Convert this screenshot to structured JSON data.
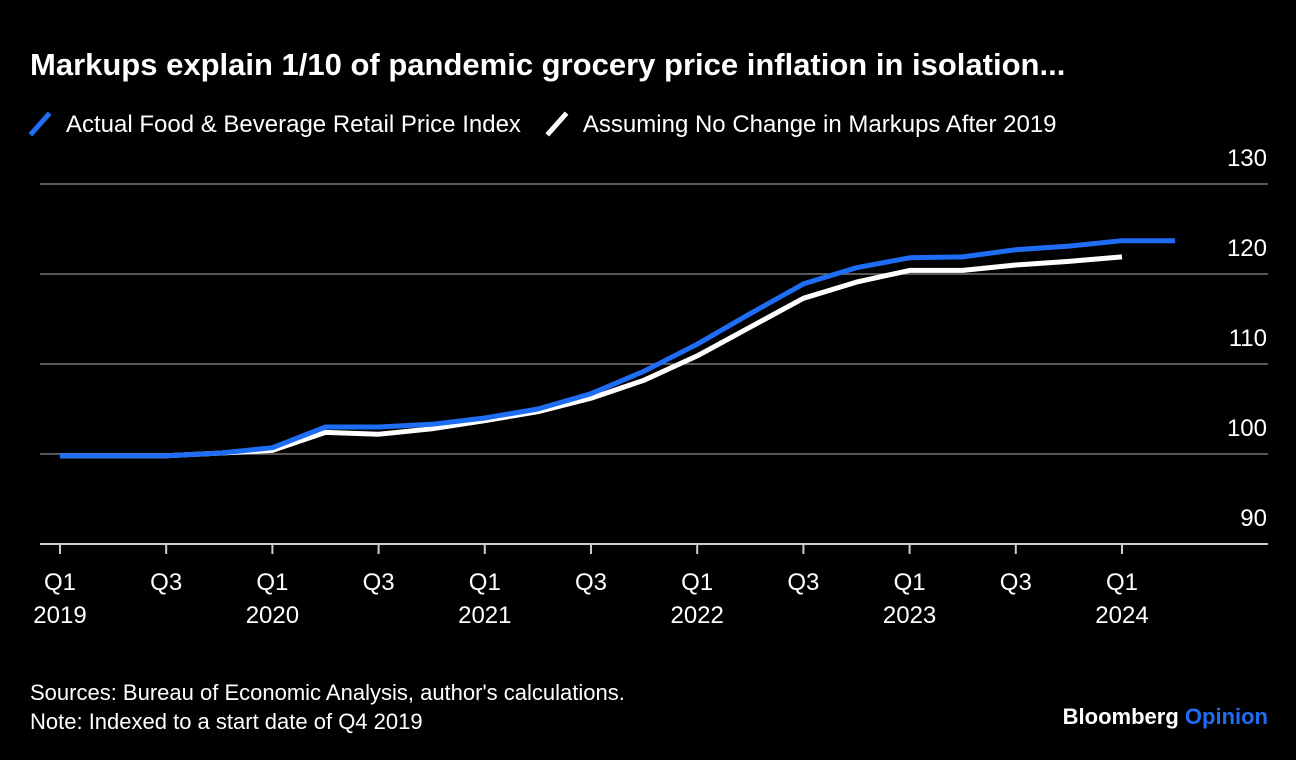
{
  "chart_data": {
    "type": "line",
    "title": "Markups explain 1/10 of pandemic grocery price inflation in isolation...",
    "categories": [
      "Q1\n2019",
      null,
      "Q3",
      null,
      "Q1\n2020",
      null,
      "Q3",
      null,
      "Q1\n2021",
      null,
      "Q3",
      null,
      "Q1\n2022",
      null,
      "Q3",
      null,
      "Q1\n2023",
      null,
      "Q3",
      null,
      "Q1\n2024",
      null
    ],
    "series": [
      {
        "name": "Actual Food & Beverage Retail Price Index",
        "color": "#1f6cf5",
        "values": [
          99.8,
          99.8,
          99.8,
          100.1,
          100.7,
          103.0,
          103.0,
          103.3,
          104.0,
          105.0,
          106.7,
          109.2,
          112.2,
          115.6,
          118.9,
          120.7,
          121.8,
          121.9,
          122.7,
          123.1,
          123.7,
          123.7
        ]
      },
      {
        "name": "Assuming No Change in Markups After 2019",
        "color": "#ffffff",
        "values": [
          99.8,
          99.8,
          99.8,
          100.1,
          100.4,
          102.4,
          102.2,
          102.8,
          103.7,
          104.7,
          106.2,
          108.2,
          110.9,
          114.1,
          117.3,
          119.1,
          120.4,
          120.4,
          121.0,
          121.4,
          121.9,
          null
        ]
      }
    ],
    "ylim": [
      90,
      130
    ],
    "yticks": [
      90,
      100,
      110,
      120,
      130
    ],
    "grid": true,
    "sources": "Sources: Bureau of Economic Analysis, author's calculations.",
    "note": "Note: Indexed to a start date of Q4 2019",
    "brand": "Bloomberg",
    "brand_sub": "Opinion"
  }
}
